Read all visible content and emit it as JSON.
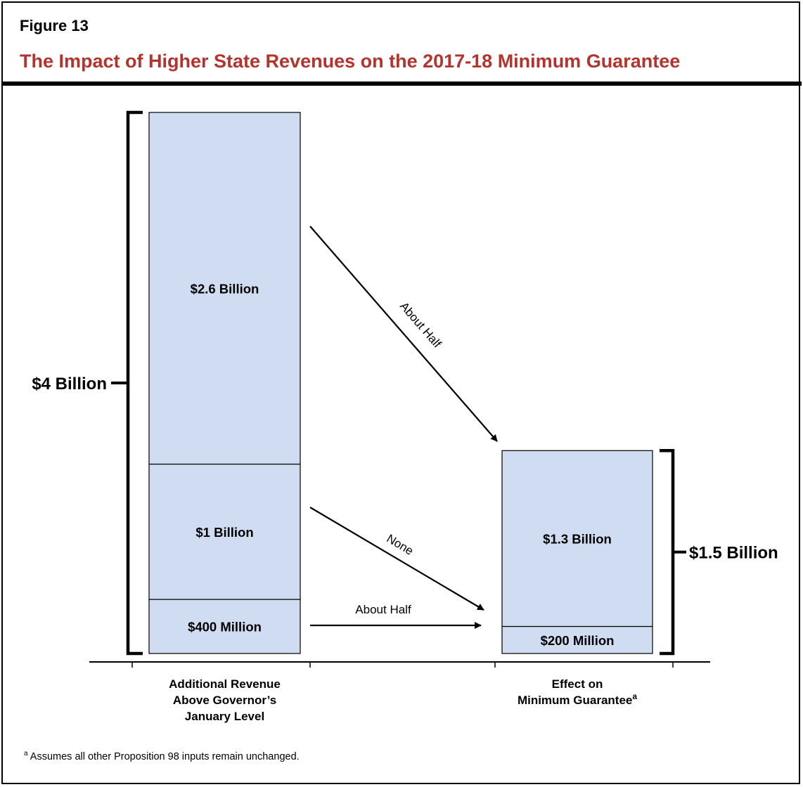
{
  "header": {
    "figure_label": "Figure 13",
    "title": "The Impact of Higher State Revenues on the 2017-18  Minimum Guarantee"
  },
  "footnote": {
    "marker": "a",
    "text": "Assumes all other Proposition 98 inputs remain unchanged."
  },
  "colors": {
    "bar_fill": "#cfdcf1",
    "title": "#b5332d",
    "ink": "#000000"
  },
  "chart_data": {
    "type": "bar",
    "stacked": true,
    "units": "billions of dollars",
    "categories": [
      [
        "Additional Revenue",
        "Above Governor’s",
        "January Level"
      ],
      [
        "Effect on",
        "Minimum Guarantee"
      ]
    ],
    "category_superscripts": [
      "",
      "a"
    ],
    "stacks": [
      {
        "total": 4.0,
        "total_label": "$4 Billion",
        "segments": [
          {
            "value": 0.4,
            "label": "$400 Million"
          },
          {
            "value": 1.0,
            "label": "$1 Billion"
          },
          {
            "value": 2.6,
            "label": "$2.6 Billion"
          }
        ]
      },
      {
        "total": 1.5,
        "total_label": "$1.5 Billion",
        "segments": [
          {
            "value": 0.2,
            "label": "$200 Million"
          },
          {
            "value": 1.3,
            "label": "$1.3 Billion"
          }
        ]
      }
    ],
    "annotations": [
      {
        "from_segment": 2,
        "text": "About Half"
      },
      {
        "from_segment": 1,
        "text": "None"
      },
      {
        "from_segment": 0,
        "text": "About Half"
      }
    ]
  }
}
